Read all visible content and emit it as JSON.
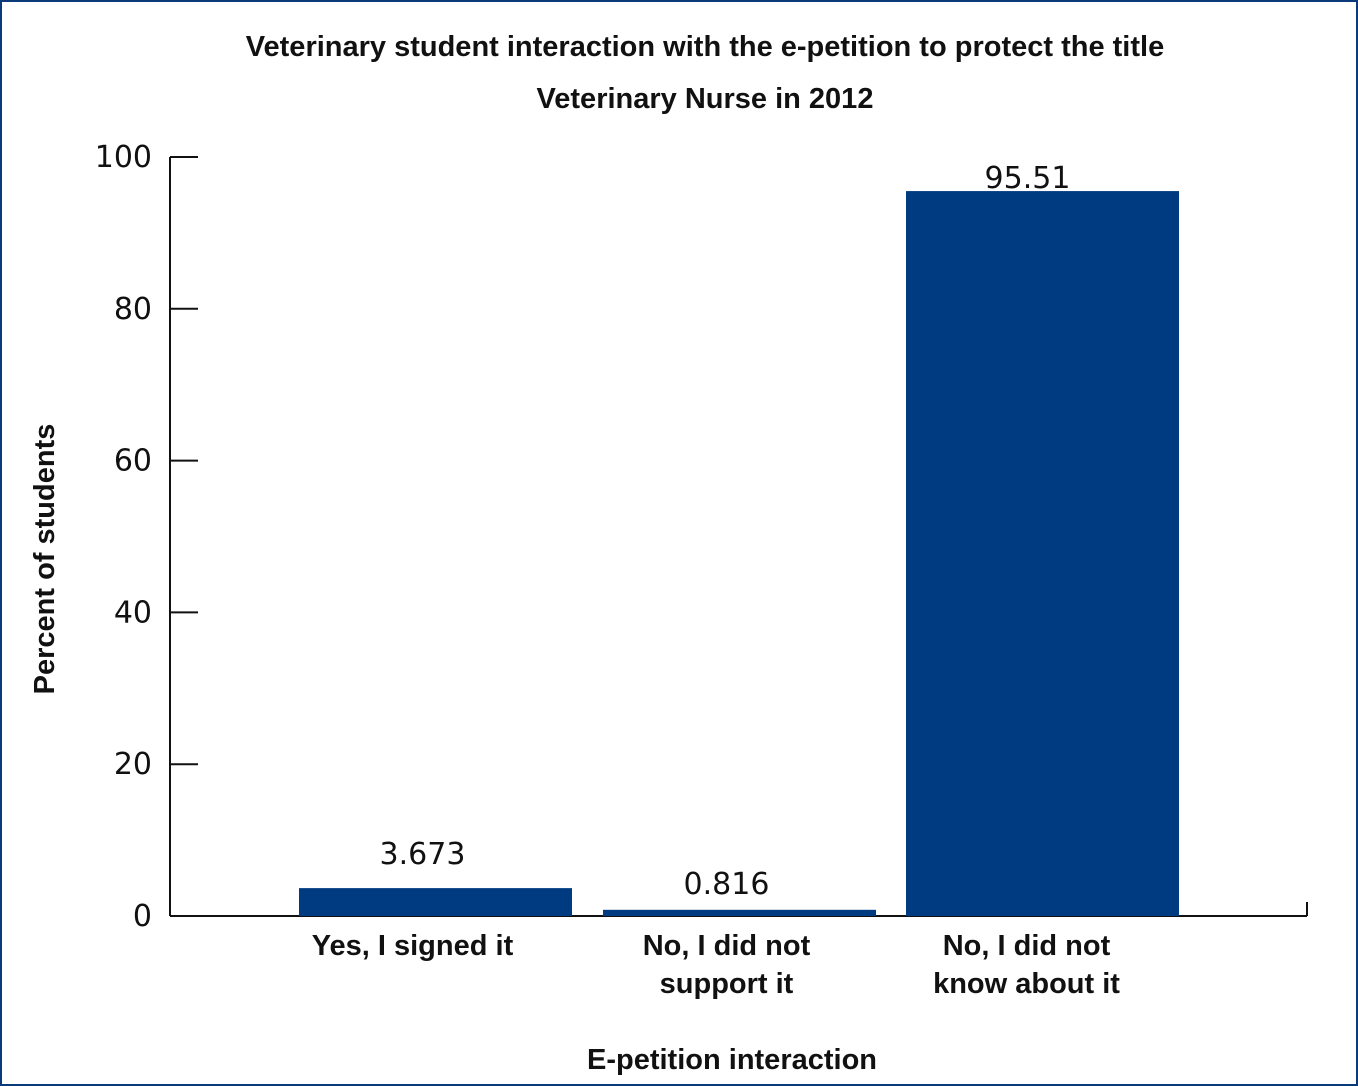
{
  "chart_data": {
    "type": "bar",
    "title_lines": [
      "Veterinary student interaction with the e-petition to protect the title",
      "Veterinary Nurse in 2012"
    ],
    "xlabel": "E-petition interaction",
    "ylabel": "Percent of students",
    "categories": [
      [
        "Yes, I signed it"
      ],
      [
        "No, I did not",
        "support it"
      ],
      [
        "No, I did not",
        "know about it"
      ]
    ],
    "values": [
      3.673,
      0.816,
      95.51
    ],
    "value_labels": [
      "3.673",
      "0.816",
      "95.51"
    ],
    "ylim": [
      0,
      100
    ],
    "yticks": [
      0,
      20,
      40,
      60,
      80,
      100
    ],
    "bar_color": "#003a80",
    "grid": false,
    "legend": "none"
  }
}
